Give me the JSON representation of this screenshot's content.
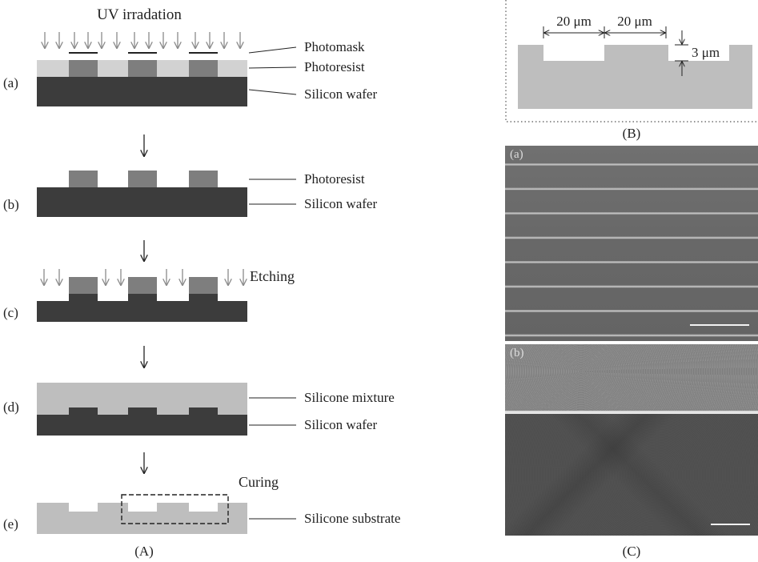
{
  "panel_A": {
    "header": "UV irradation",
    "caption": "(A)",
    "etching_label": "Etching",
    "curing_label": "Curing",
    "steps": [
      {
        "letter": "(a)",
        "labels": [
          "Photomask",
          "Photoresist",
          "Silicon wafer"
        ]
      },
      {
        "letter": "(b)",
        "labels": [
          "Photoresist",
          "Silicon wafer"
        ]
      },
      {
        "letter": "(c)",
        "labels": []
      },
      {
        "letter": "(d)",
        "labels": [
          "Silicone mixture",
          "Silicon wafer"
        ]
      },
      {
        "letter": "(e)",
        "labels": [
          "Silicone substrate"
        ]
      }
    ]
  },
  "panel_B": {
    "caption": "(B)",
    "width_label_1": "20 μm",
    "width_label_2": "20 μm",
    "depth_label": "3 μm"
  },
  "panel_C": {
    "caption": "(C)",
    "image_a_label": "(a)",
    "image_b_label": "(b)"
  },
  "colors": {
    "wafer": "#3c3c3c",
    "photoresist_block": "#7e7e7e",
    "photoresist_layer": "#d2d2d2",
    "silicone": "#bebebe",
    "arrow": "#8a8a8a"
  }
}
